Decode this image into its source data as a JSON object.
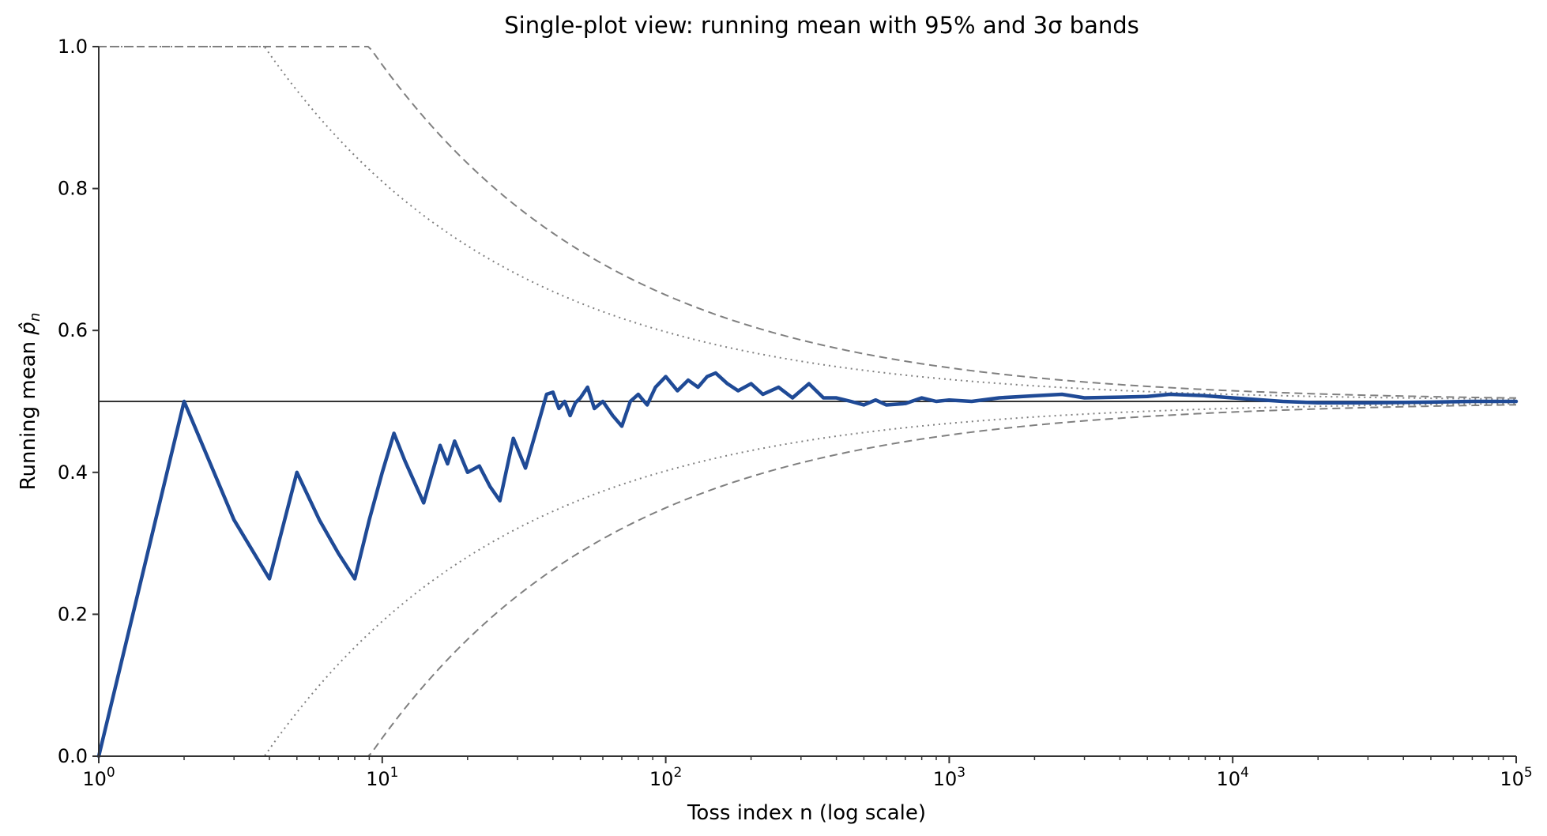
{
  "chart_data": {
    "type": "line",
    "title": "Single-plot view: running mean with 95% and 3σ bands",
    "xlabel": "Toss index n (log scale)",
    "ylabel_text": "Running mean ",
    "ylabel_symbol": "p̂",
    "ylabel_subscript": "n",
    "xscale": "log",
    "xlim": [
      1,
      100000
    ],
    "ylim": [
      0.0,
      1.0
    ],
    "grid": false,
    "x_ticks": [
      {
        "base": "10",
        "exp": "0",
        "value": 1
      },
      {
        "base": "10",
        "exp": "1",
        "value": 10
      },
      {
        "base": "10",
        "exp": "2",
        "value": 100
      },
      {
        "base": "10",
        "exp": "3",
        "value": 1000
      },
      {
        "base": "10",
        "exp": "4",
        "value": 10000
      },
      {
        "base": "10",
        "exp": "5",
        "value": 100000
      }
    ],
    "y_ticks": [
      "0.0",
      "0.2",
      "0.4",
      "0.6",
      "0.8",
      "1.0"
    ],
    "reference_line": {
      "y": 0.5,
      "color": "#333333"
    },
    "colors": {
      "running_mean": "#1f4a96",
      "bands": "#808080",
      "axis": "#333333"
    },
    "bands": {
      "p": 0.5,
      "z95": 1.96,
      "z3sigma": 3.0
    },
    "series": [
      {
        "role": "running_mean",
        "x": [
          1,
          2,
          3,
          4,
          5,
          6,
          7,
          8,
          9,
          10,
          11,
          12,
          14,
          16,
          17,
          18,
          20,
          22,
          24,
          26,
          29,
          32,
          35,
          38,
          40,
          42,
          44,
          46,
          48,
          50,
          53,
          56,
          60,
          65,
          70,
          75,
          80,
          86,
          92,
          100,
          110,
          120,
          130,
          140,
          150,
          165,
          180,
          200,
          220,
          250,
          280,
          320,
          360,
          400,
          450,
          500,
          550,
          600,
          700,
          800,
          900,
          1000,
          1200,
          1500,
          2000,
          2500,
          3000,
          4000,
          5000,
          6000,
          8000,
          10000,
          15000,
          20000,
          30000,
          50000,
          70000,
          100000
        ],
        "y": [
          0.0,
          0.5,
          0.333,
          0.25,
          0.4,
          0.333,
          0.286,
          0.25,
          0.333,
          0.4,
          0.455,
          0.417,
          0.357,
          0.438,
          0.412,
          0.444,
          0.4,
          0.409,
          0.38,
          0.36,
          0.448,
          0.406,
          0.46,
          0.51,
          0.513,
          0.49,
          0.5,
          0.48,
          0.498,
          0.505,
          0.52,
          0.49,
          0.5,
          0.48,
          0.465,
          0.5,
          0.51,
          0.495,
          0.52,
          0.535,
          0.515,
          0.53,
          0.52,
          0.535,
          0.54,
          0.525,
          0.515,
          0.525,
          0.51,
          0.52,
          0.505,
          0.525,
          0.505,
          0.505,
          0.5,
          0.495,
          0.502,
          0.495,
          0.497,
          0.505,
          0.5,
          0.502,
          0.5,
          0.505,
          0.508,
          0.51,
          0.505,
          0.506,
          0.507,
          0.51,
          0.508,
          0.505,
          0.5,
          0.498,
          0.498,
          0.499,
          0.5,
          0.5
        ]
      }
    ]
  }
}
